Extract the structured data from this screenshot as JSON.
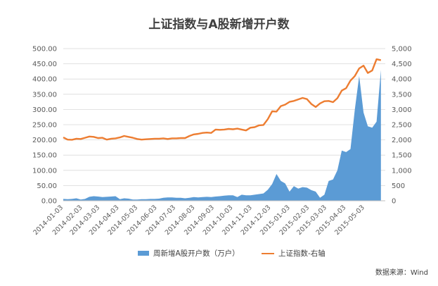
{
  "title": "上证指数与A股新增开户数",
  "source": "数据来源：Wind",
  "colors": {
    "area": "#5b9bd5",
    "line": "#ed7d31",
    "grid": "#d9d9d9",
    "text": "#595959"
  },
  "chart_data": {
    "type": "area",
    "title": "上证指数与A股新增开户数",
    "x_tick_labels": [
      "2014-01-03",
      "2014-02-03",
      "2014-03-03",
      "2014-04-03",
      "2014-05-03",
      "2014-06-03",
      "2014-07-03",
      "2014-08-03",
      "2014-09-03",
      "2014-10-03",
      "2014-11-03",
      "2014-12-03",
      "2015-01-03",
      "2015-02-03",
      "2015-03-03",
      "2015-04-03",
      "2015-05-03"
    ],
    "left_axis": {
      "ylim": [
        0,
        500
      ],
      "ticks": [
        "0.00",
        "50.00",
        "100.00",
        "150.00",
        "200.00",
        "250.00",
        "300.00",
        "350.00",
        "400.00",
        "450.00",
        "500.00"
      ]
    },
    "right_axis": {
      "ylim": [
        0,
        5000
      ],
      "ticks": [
        "0",
        "500",
        "1,000",
        "1,500",
        "2,000",
        "2,500",
        "3,000",
        "3,500",
        "4,000",
        "4,500",
        "5,000"
      ]
    },
    "grid": true,
    "legend_position": "bottom",
    "series": [
      {
        "name": "周新增A股开户数（万户）",
        "type": "area",
        "axis": "left",
        "x": [
          "2014-01-03",
          "2014-01-10",
          "2014-01-17",
          "2014-01-24",
          "2014-01-31",
          "2014-02-07",
          "2014-02-14",
          "2014-02-21",
          "2014-02-28",
          "2014-03-07",
          "2014-03-14",
          "2014-03-21",
          "2014-03-28",
          "2014-04-04",
          "2014-04-11",
          "2014-04-18",
          "2014-04-25",
          "2014-05-02",
          "2014-05-09",
          "2014-05-16",
          "2014-05-23",
          "2014-05-30",
          "2014-06-06",
          "2014-06-13",
          "2014-06-20",
          "2014-06-27",
          "2014-07-04",
          "2014-07-11",
          "2014-07-18",
          "2014-07-25",
          "2014-08-01",
          "2014-08-08",
          "2014-08-15",
          "2014-08-22",
          "2014-08-29",
          "2014-09-05",
          "2014-09-12",
          "2014-09-19",
          "2014-09-26",
          "2014-10-03",
          "2014-10-10",
          "2014-10-17",
          "2014-10-24",
          "2014-10-31",
          "2014-11-07",
          "2014-11-14",
          "2014-11-21",
          "2014-11-28",
          "2014-12-05",
          "2014-12-12",
          "2014-12-19",
          "2014-12-26",
          "2015-01-02",
          "2015-01-09",
          "2015-01-16",
          "2015-01-23",
          "2015-01-30",
          "2015-02-06",
          "2015-02-13",
          "2015-02-20",
          "2015-02-27",
          "2015-03-06",
          "2015-03-13",
          "2015-03-20",
          "2015-03-27",
          "2015-04-03",
          "2015-04-10",
          "2015-04-17",
          "2015-04-24",
          "2015-05-01",
          "2015-05-08",
          "2015-05-15",
          "2015-05-22",
          "2015-05-29"
        ],
        "values": [
          6,
          5,
          6,
          8,
          4,
          6,
          13,
          15,
          14,
          12,
          13,
          14,
          15,
          5,
          8,
          7,
          4,
          4,
          5,
          5,
          6,
          6,
          7,
          10,
          11,
          11,
          10,
          10,
          8,
          10,
          12,
          11,
          12,
          13,
          12,
          14,
          15,
          17,
          18,
          18,
          12,
          20,
          18,
          18,
          20,
          22,
          24,
          36,
          55,
          88,
          65,
          57,
          30,
          48,
          40,
          45,
          43,
          35,
          30,
          10,
          20,
          65,
          70,
          100,
          165,
          160,
          170,
          300,
          410,
          290,
          245,
          240,
          260,
          430
        ]
      },
      {
        "name": "上证指数-右轴",
        "type": "line",
        "axis": "right",
        "x": [
          "2014-01-03",
          "2014-01-10",
          "2014-01-17",
          "2014-01-24",
          "2014-01-31",
          "2014-02-07",
          "2014-02-14",
          "2014-02-21",
          "2014-02-28",
          "2014-03-07",
          "2014-03-14",
          "2014-03-21",
          "2014-03-28",
          "2014-04-04",
          "2014-04-11",
          "2014-04-18",
          "2014-04-25",
          "2014-05-02",
          "2014-05-09",
          "2014-05-16",
          "2014-05-23",
          "2014-05-30",
          "2014-06-06",
          "2014-06-13",
          "2014-06-20",
          "2014-06-27",
          "2014-07-04",
          "2014-07-11",
          "2014-07-18",
          "2014-07-25",
          "2014-08-01",
          "2014-08-08",
          "2014-08-15",
          "2014-08-22",
          "2014-08-29",
          "2014-09-05",
          "2014-09-12",
          "2014-09-19",
          "2014-09-26",
          "2014-10-03",
          "2014-10-10",
          "2014-10-17",
          "2014-10-24",
          "2014-10-31",
          "2014-11-07",
          "2014-11-14",
          "2014-11-21",
          "2014-11-28",
          "2014-12-05",
          "2014-12-12",
          "2014-12-19",
          "2014-12-26",
          "2015-01-02",
          "2015-01-09",
          "2015-01-16",
          "2015-01-23",
          "2015-01-30",
          "2015-02-06",
          "2015-02-13",
          "2015-02-20",
          "2015-02-27",
          "2015-03-06",
          "2015-03-13",
          "2015-03-20",
          "2015-03-27",
          "2015-04-03",
          "2015-04-10",
          "2015-04-17",
          "2015-04-24",
          "2015-05-01",
          "2015-05-08",
          "2015-05-15",
          "2015-05-22",
          "2015-05-29"
        ],
        "values": [
          2080,
          2010,
          2005,
          2040,
          2030,
          2070,
          2110,
          2100,
          2060,
          2070,
          2010,
          2040,
          2050,
          2080,
          2130,
          2100,
          2070,
          2030,
          2010,
          2020,
          2030,
          2040,
          2040,
          2050,
          2030,
          2050,
          2050,
          2060,
          2060,
          2130,
          2180,
          2200,
          2230,
          2240,
          2230,
          2340,
          2330,
          2340,
          2360,
          2350,
          2370,
          2340,
          2310,
          2400,
          2420,
          2480,
          2490,
          2680,
          2940,
          2930,
          3110,
          3160,
          3250,
          3280,
          3330,
          3380,
          3340,
          3180,
          3080,
          3200,
          3270,
          3280,
          3240,
          3370,
          3620,
          3700,
          3950,
          4100,
          4350,
          4440,
          4200,
          4280,
          4650,
          4620
        ]
      }
    ]
  }
}
